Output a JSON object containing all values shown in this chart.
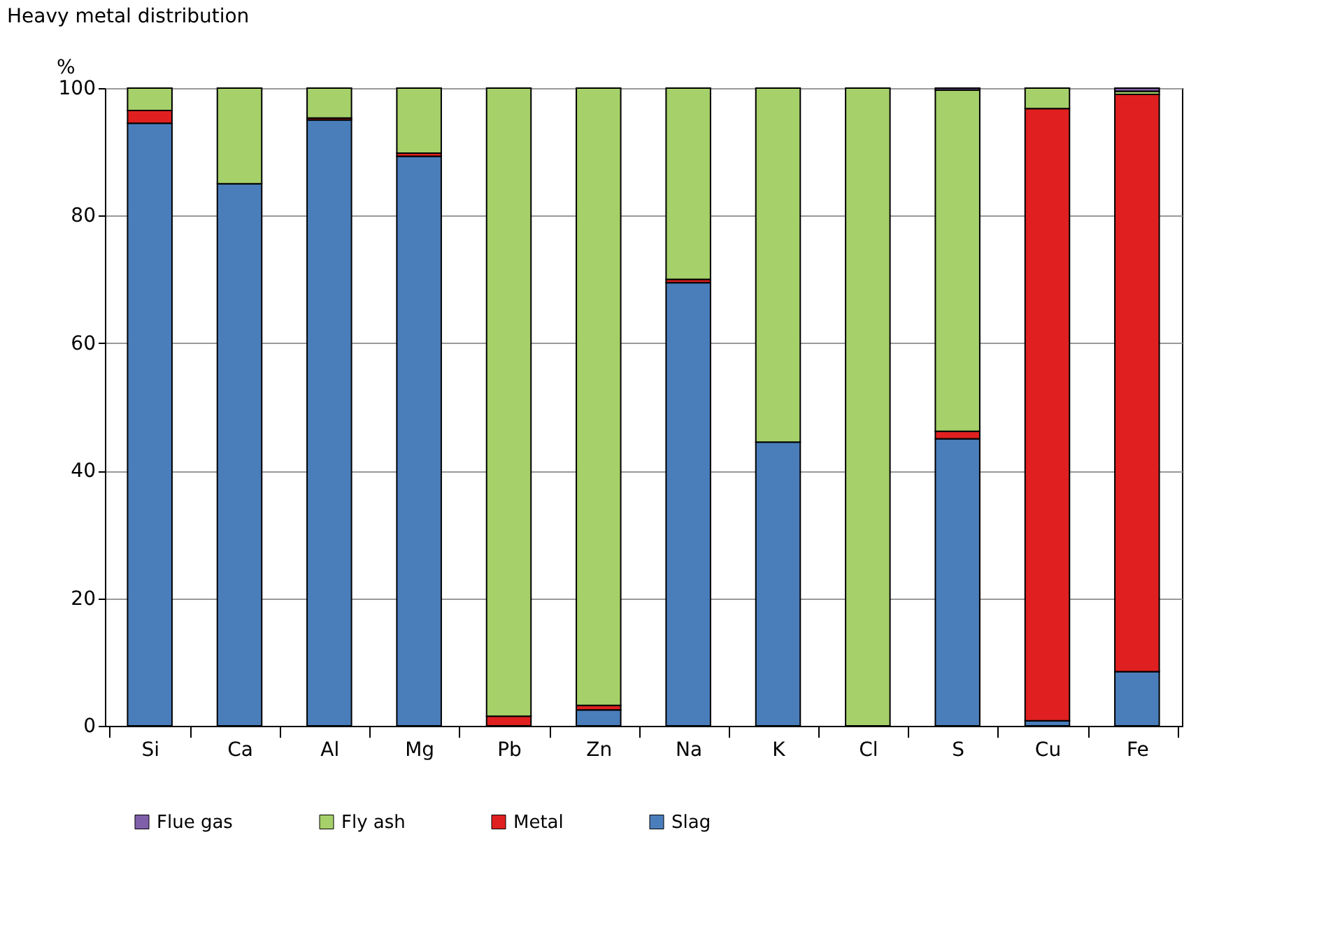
{
  "chart_data": {
    "type": "bar",
    "stacked": true,
    "title": "Heavy metal distribution",
    "ylabel": "%",
    "categories": [
      "Si",
      "Ca",
      "Al",
      "Mg",
      "Pb",
      "Zn",
      "Na",
      "K",
      "Cl",
      "S",
      "Cu",
      "Fe"
    ],
    "series": [
      {
        "name": "Slag",
        "color": "#4a7ebb",
        "values": [
          94.5,
          85,
          95,
          89.3,
          null,
          2.5,
          69.5,
          44.5,
          null,
          45,
          0.8,
          8.5
        ]
      },
      {
        "name": "Metal",
        "color": "#e02020",
        "values": [
          2,
          null,
          0.3,
          0.5,
          1.5,
          0.7,
          0.5,
          null,
          null,
          1.2,
          96,
          90.5
        ]
      },
      {
        "name": "Fly ash",
        "color": "#a6d06a",
        "values": [
          3.5,
          15,
          4.7,
          10.2,
          98.5,
          96.8,
          30,
          55.5,
          100,
          53.5,
          3.2,
          0.5
        ]
      },
      {
        "name": "Flue gas",
        "color": "#7f5fa8",
        "values": [
          null,
          null,
          null,
          null,
          null,
          null,
          null,
          null,
          null,
          0.3,
          null,
          0.5
        ]
      }
    ],
    "ylim": [
      0,
      100
    ],
    "yticks": [
      0,
      20,
      40,
      60,
      80,
      100
    ],
    "grid": "y",
    "legend": "bottom"
  }
}
